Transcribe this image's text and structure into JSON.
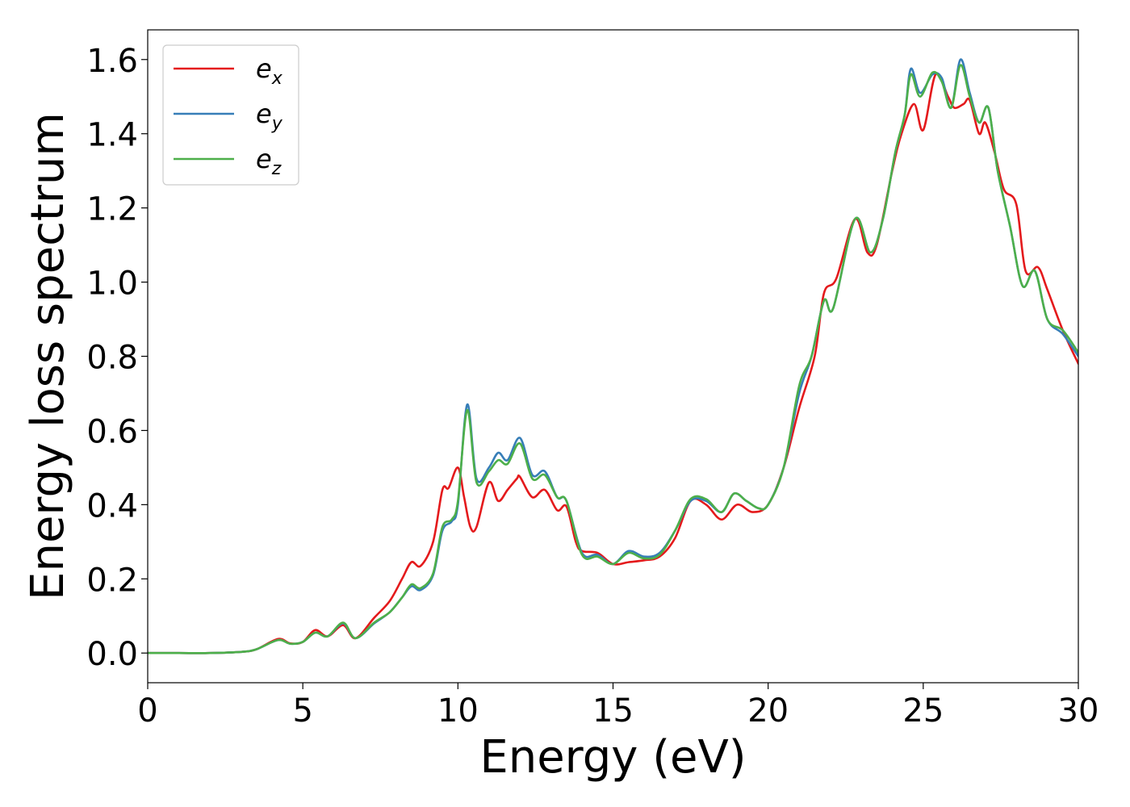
{
  "chart_data": {
    "type": "line",
    "xlabel": "Energy (eV)",
    "ylabel": "Energy loss spectrum",
    "xlim": [
      0,
      30
    ],
    "ylim": [
      -0.08,
      1.68
    ],
    "xticks": [
      0,
      5,
      10,
      15,
      20,
      25,
      30
    ],
    "yticks": [
      0.0,
      0.2,
      0.4,
      0.6,
      0.8,
      1.0,
      1.2,
      1.4,
      1.6
    ],
    "xtick_labels": [
      "0",
      "5",
      "10",
      "15",
      "20",
      "25",
      "30"
    ],
    "ytick_labels": [
      "0.0",
      "0.2",
      "0.4",
      "0.6",
      "0.8",
      "1.0",
      "1.2",
      "1.4",
      "1.6"
    ],
    "grid": false,
    "legend_position": "top-left",
    "series": [
      {
        "name": "e_x",
        "legend_base": "e",
        "legend_sub": "x",
        "color": "#e41a1c",
        "x": [
          0,
          1,
          2,
          3,
          3.5,
          4.2,
          4.6,
          5.0,
          5.4,
          5.8,
          6.3,
          6.7,
          7.3,
          7.8,
          8.2,
          8.5,
          8.8,
          9.2,
          9.5,
          9.7,
          10.0,
          10.2,
          10.4,
          10.6,
          11.0,
          11.3,
          11.6,
          11.9,
          12.0,
          12.4,
          12.8,
          13.2,
          13.5,
          13.8,
          14.0,
          14.5,
          15.0,
          15.5,
          16.0,
          16.5,
          17.0,
          17.5,
          18.0,
          18.5,
          19.0,
          19.5,
          20.0,
          20.5,
          21.0,
          21.5,
          21.8,
          22.2,
          22.8,
          23.2,
          23.5,
          24.0,
          24.3,
          24.7,
          25.0,
          25.4,
          25.8,
          26.0,
          26.3,
          26.5,
          26.8,
          27.0,
          27.3,
          27.6,
          28.0,
          28.3,
          28.7,
          29.0,
          29.5,
          30.0
        ],
        "y": [
          0.0,
          0.0,
          0.0,
          0.003,
          0.01,
          0.038,
          0.026,
          0.03,
          0.062,
          0.045,
          0.075,
          0.04,
          0.095,
          0.14,
          0.2,
          0.245,
          0.235,
          0.3,
          0.44,
          0.445,
          0.5,
          0.42,
          0.34,
          0.34,
          0.46,
          0.41,
          0.44,
          0.47,
          0.475,
          0.42,
          0.44,
          0.385,
          0.395,
          0.3,
          0.275,
          0.27,
          0.24,
          0.245,
          0.25,
          0.26,
          0.31,
          0.41,
          0.4,
          0.36,
          0.4,
          0.38,
          0.4,
          0.5,
          0.66,
          0.8,
          0.97,
          1.01,
          1.17,
          1.08,
          1.1,
          1.3,
          1.4,
          1.48,
          1.41,
          1.56,
          1.5,
          1.47,
          1.48,
          1.49,
          1.4,
          1.43,
          1.35,
          1.25,
          1.21,
          1.03,
          1.04,
          0.98,
          0.87,
          0.78
        ]
      },
      {
        "name": "e_y",
        "legend_base": "e",
        "legend_sub": "y",
        "color": "#377eb8",
        "x": [
          0,
          1,
          2,
          3,
          3.5,
          4.2,
          4.6,
          5.0,
          5.4,
          5.8,
          6.3,
          6.7,
          7.3,
          7.8,
          8.2,
          8.5,
          8.8,
          9.2,
          9.5,
          9.8,
          10.0,
          10.3,
          10.6,
          11.0,
          11.3,
          11.6,
          12.0,
          12.4,
          12.8,
          13.2,
          13.5,
          14.0,
          14.5,
          15.0,
          15.5,
          16.0,
          16.5,
          17.0,
          17.5,
          18.0,
          18.5,
          18.9,
          19.3,
          19.7,
          20.0,
          20.5,
          21.0,
          21.4,
          21.8,
          22.1,
          22.8,
          23.3,
          23.7,
          24.1,
          24.4,
          24.6,
          24.9,
          25.3,
          25.6,
          25.9,
          26.2,
          26.5,
          26.8,
          27.1,
          27.4,
          27.8,
          28.2,
          28.6,
          29.0,
          29.5,
          30.0
        ],
        "y": [
          0.0,
          0.0,
          0.0,
          0.003,
          0.01,
          0.035,
          0.025,
          0.03,
          0.055,
          0.045,
          0.08,
          0.04,
          0.08,
          0.11,
          0.15,
          0.18,
          0.17,
          0.21,
          0.33,
          0.355,
          0.4,
          0.67,
          0.47,
          0.5,
          0.54,
          0.52,
          0.58,
          0.48,
          0.49,
          0.42,
          0.41,
          0.27,
          0.265,
          0.24,
          0.275,
          0.26,
          0.27,
          0.33,
          0.41,
          0.41,
          0.38,
          0.43,
          0.41,
          0.39,
          0.4,
          0.5,
          0.7,
          0.8,
          0.95,
          0.93,
          1.17,
          1.08,
          1.17,
          1.35,
          1.45,
          1.575,
          1.51,
          1.56,
          1.55,
          1.47,
          1.6,
          1.51,
          1.43,
          1.47,
          1.3,
          1.15,
          0.99,
          1.03,
          0.9,
          0.86,
          0.8
        ]
      },
      {
        "name": "e_z",
        "legend_base": "e",
        "legend_sub": "z",
        "color": "#4daf4a",
        "x": [
          0,
          1,
          2,
          3,
          3.5,
          4.2,
          4.6,
          5.0,
          5.4,
          5.8,
          6.3,
          6.7,
          7.3,
          7.8,
          8.2,
          8.5,
          8.8,
          9.2,
          9.5,
          9.8,
          10.0,
          10.3,
          10.6,
          11.0,
          11.3,
          11.6,
          12.0,
          12.4,
          12.8,
          13.2,
          13.5,
          14.0,
          14.5,
          15.0,
          15.5,
          16.0,
          16.5,
          17.0,
          17.5,
          18.0,
          18.5,
          18.9,
          19.3,
          19.7,
          20.0,
          20.5,
          21.0,
          21.4,
          21.8,
          22.1,
          22.8,
          23.3,
          23.7,
          24.1,
          24.4,
          24.6,
          24.9,
          25.3,
          25.6,
          25.9,
          26.2,
          26.5,
          26.8,
          27.1,
          27.4,
          27.8,
          28.2,
          28.6,
          29.0,
          29.5,
          30.0
        ],
        "y": [
          0.0,
          0.0,
          0.0,
          0.003,
          0.01,
          0.035,
          0.025,
          0.03,
          0.055,
          0.045,
          0.082,
          0.04,
          0.082,
          0.11,
          0.15,
          0.185,
          0.175,
          0.215,
          0.34,
          0.36,
          0.41,
          0.655,
          0.46,
          0.49,
          0.52,
          0.51,
          0.565,
          0.47,
          0.48,
          0.42,
          0.41,
          0.265,
          0.26,
          0.24,
          0.27,
          0.255,
          0.265,
          0.33,
          0.415,
          0.415,
          0.38,
          0.43,
          0.41,
          0.39,
          0.4,
          0.5,
          0.72,
          0.8,
          0.95,
          0.93,
          1.17,
          1.08,
          1.17,
          1.35,
          1.45,
          1.56,
          1.5,
          1.565,
          1.54,
          1.47,
          1.585,
          1.5,
          1.43,
          1.47,
          1.3,
          1.15,
          0.99,
          1.03,
          0.9,
          0.87,
          0.81
        ]
      }
    ]
  }
}
